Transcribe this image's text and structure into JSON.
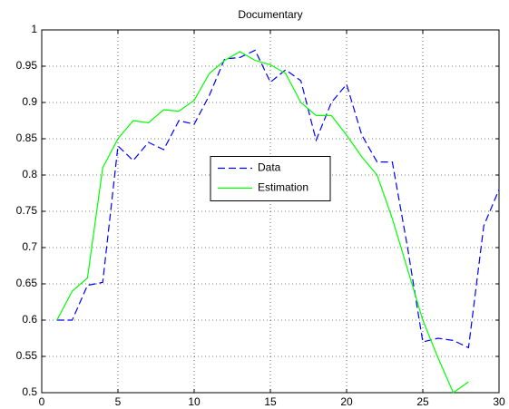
{
  "chart_data": {
    "type": "line",
    "title": "Documentary",
    "x": [
      1,
      2,
      3,
      4,
      5,
      6,
      7,
      8,
      9,
      10,
      11,
      12,
      13,
      14,
      15,
      16,
      17,
      18,
      19,
      20,
      21,
      22,
      23,
      24,
      25,
      26,
      27,
      28,
      29,
      30
    ],
    "series": [
      {
        "name": "Data",
        "color": "#0000ff",
        "style": "dashed",
        "values": [
          0.6,
          0.6,
          0.648,
          0.652,
          0.84,
          0.82,
          0.845,
          0.835,
          0.875,
          0.87,
          0.91,
          0.96,
          0.962,
          0.972,
          0.928,
          0.945,
          0.93,
          0.848,
          0.9,
          0.925,
          0.855,
          0.818,
          0.818,
          0.7,
          0.57,
          0.575,
          0.572,
          0.562,
          0.73,
          0.78
        ]
      },
      {
        "name": "Estimation",
        "color": "#00ff00",
        "style": "solid",
        "values": [
          0.6,
          0.64,
          0.658,
          0.81,
          0.85,
          0.875,
          0.872,
          0.89,
          0.888,
          0.903,
          0.94,
          0.958,
          0.97,
          0.958,
          0.952,
          0.94,
          0.9,
          0.882,
          0.882,
          0.855,
          0.825,
          0.8,
          0.74,
          0.67,
          0.6,
          0.548,
          0.5,
          0.515,
          null,
          null
        ]
      }
    ],
    "xlim": [
      0,
      30
    ],
    "xticks": [
      0,
      5,
      10,
      15,
      20,
      25,
      30
    ],
    "ylim": [
      0.5,
      1
    ],
    "yticks": [
      0.5,
      0.55,
      0.6,
      0.65,
      0.7,
      0.75,
      0.8,
      0.85,
      0.9,
      0.95,
      1
    ],
    "grid": true,
    "legend": "center"
  }
}
